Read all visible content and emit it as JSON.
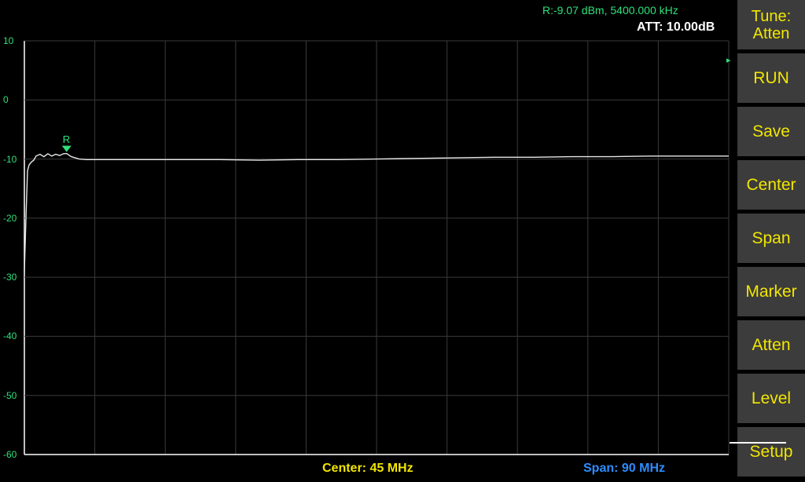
{
  "readouts": {
    "marker_readout": "R:-9.07 dBm, 5400.000 kHz",
    "attenuation": "ATT: 10.00dB",
    "center": "Center: 45 MHz",
    "span": "Span: 90 MHz",
    "marker_label": "R"
  },
  "softkeys": [
    {
      "id": "tune-atten",
      "line1": "Tune:",
      "line2": "Atten"
    },
    {
      "id": "run",
      "line1": "RUN",
      "line2": ""
    },
    {
      "id": "save",
      "line1": "Save",
      "line2": ""
    },
    {
      "id": "center",
      "line1": "Center",
      "line2": ""
    },
    {
      "id": "span",
      "line1": "Span",
      "line2": ""
    },
    {
      "id": "marker",
      "line1": "Marker",
      "line2": ""
    },
    {
      "id": "atten",
      "line1": "Atten",
      "line2": ""
    },
    {
      "id": "level",
      "line1": "Level",
      "line2": ""
    },
    {
      "id": "setup",
      "line1": "Setup",
      "line2": ""
    }
  ],
  "colors": {
    "background": "#000000",
    "grid": "#3a3a3a",
    "trace": "#e8e8e8",
    "marker": "#2fe07a",
    "softkey_bg": "#3c3c3c",
    "softkey_text": "#f2e600",
    "span_text": "#2d8cff"
  },
  "chart_data": {
    "type": "line",
    "ylim": [
      -60,
      10
    ],
    "xlim": [
      0,
      90
    ],
    "y_tick_labels": [
      "10",
      "0",
      "-10",
      "-20",
      "-30",
      "-40",
      "-50",
      "-60"
    ],
    "y_ticks": [
      10,
      0,
      -10,
      -20,
      -30,
      -40,
      -50,
      -60
    ],
    "x_divisions": 10,
    "grid": true,
    "series": [
      {
        "x": [
          0.0,
          0.2,
          0.4,
          0.6,
          0.9,
          1.2,
          1.5,
          2.0,
          2.5,
          3.0,
          3.5,
          4.0,
          4.5,
          5.0,
          5.4,
          6.0,
          7.0,
          8.0,
          10,
          15,
          20,
          25,
          30,
          35,
          40,
          45,
          50,
          55,
          60,
          65,
          70,
          75,
          80,
          85,
          90
        ],
        "y": [
          -29,
          -20,
          -12,
          -11,
          -10.5,
          -10.2,
          -9.5,
          -9.2,
          -9.6,
          -9.1,
          -9.5,
          -9.2,
          -9.4,
          -9.1,
          -9.07,
          -9.6,
          -10,
          -10.1,
          -10.1,
          -10.1,
          -10.1,
          -10.1,
          -10.2,
          -10.1,
          -10.1,
          -10.0,
          -9.9,
          -9.8,
          -9.7,
          -9.7,
          -9.6,
          -9.6,
          -9.5,
          -9.5,
          -9.5
        ]
      }
    ],
    "marker": {
      "label": "R",
      "x": 5.4,
      "y": -9.07
    }
  }
}
